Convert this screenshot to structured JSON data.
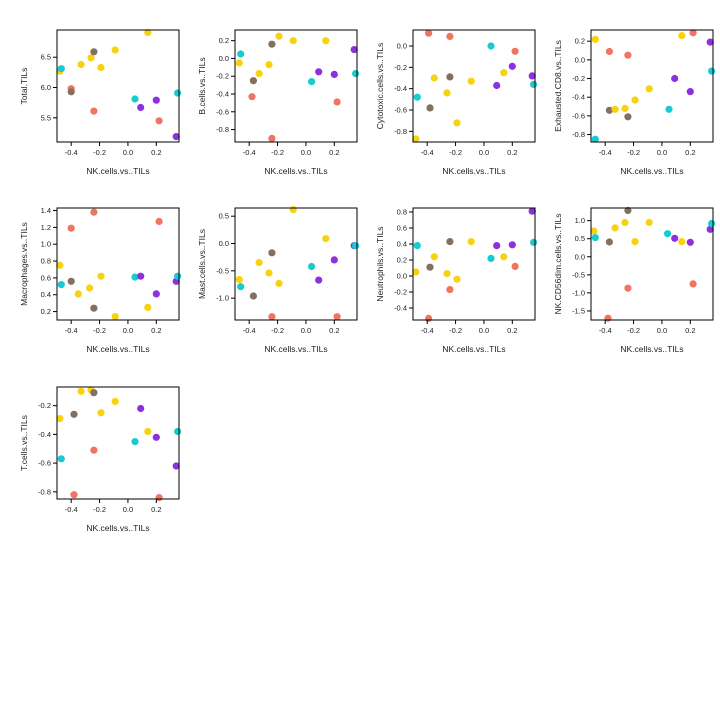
{
  "colors": {
    "yellow": "#f8d210",
    "brown": "#857060",
    "salmon": "#f07560",
    "cyan": "#18cbcf",
    "purple": "#8c30e0"
  },
  "chart_data": [
    {
      "type": "scatter",
      "xlabel": "NK.cells.vs..TILs",
      "ylabel": "Total.TILs",
      "xlim": [
        -0.5,
        0.36
      ],
      "ylim": [
        5.1,
        6.95
      ],
      "xticks": [
        -0.4,
        -0.2,
        0.0,
        0.2
      ],
      "xtick_labels": [
        "-0.4",
        "-0.2",
        "0.0",
        "0.2"
      ],
      "yticks": [
        5.5,
        6.0,
        6.5
      ],
      "ytick_labels": [
        "5.5",
        "6.0",
        "6.5"
      ],
      "points": [
        {
          "x": -0.48,
          "y": 6.27,
          "c": "yellow"
        },
        {
          "x": -0.47,
          "y": 6.31,
          "c": "cyan"
        },
        {
          "x": -0.4,
          "y": 5.98,
          "c": "salmon"
        },
        {
          "x": -0.4,
          "y": 5.93,
          "c": "brown"
        },
        {
          "x": -0.33,
          "y": 6.38,
          "c": "yellow"
        },
        {
          "x": -0.26,
          "y": 6.49,
          "c": "yellow"
        },
        {
          "x": -0.24,
          "y": 6.59,
          "c": "brown"
        },
        {
          "x": -0.24,
          "y": 5.61,
          "c": "salmon"
        },
        {
          "x": -0.19,
          "y": 6.33,
          "c": "yellow"
        },
        {
          "x": -0.09,
          "y": 6.62,
          "c": "yellow"
        },
        {
          "x": 0.05,
          "y": 5.81,
          "c": "cyan"
        },
        {
          "x": 0.09,
          "y": 5.67,
          "c": "purple"
        },
        {
          "x": 0.14,
          "y": 6.91,
          "c": "yellow"
        },
        {
          "x": 0.2,
          "y": 5.79,
          "c": "purple"
        },
        {
          "x": 0.22,
          "y": 5.45,
          "c": "salmon"
        },
        {
          "x": 0.34,
          "y": 5.19,
          "c": "purple"
        },
        {
          "x": 0.35,
          "y": 5.91,
          "c": "cyan"
        }
      ]
    },
    {
      "type": "scatter",
      "xlabel": "NK.cells.vs..TILs",
      "ylabel": "B.cells.vs..TILs",
      "xlim": [
        -0.5,
        0.36
      ],
      "ylim": [
        -0.94,
        0.32
      ],
      "xticks": [
        -0.4,
        -0.2,
        0.0,
        0.2
      ],
      "xtick_labels": [
        "-0.4",
        "-0.2",
        "0.0",
        "0.2"
      ],
      "yticks": [
        -0.8,
        -0.6,
        -0.4,
        -0.2,
        0.0,
        0.2
      ],
      "ytick_labels": [
        "-0.8",
        "-0.6",
        "-0.4",
        "-0.2",
        "0.0",
        "0.2"
      ],
      "points": [
        {
          "x": -0.47,
          "y": -0.05,
          "c": "yellow"
        },
        {
          "x": -0.46,
          "y": 0.05,
          "c": "cyan"
        },
        {
          "x": -0.38,
          "y": -0.43,
          "c": "salmon"
        },
        {
          "x": -0.37,
          "y": -0.25,
          "c": "brown"
        },
        {
          "x": -0.33,
          "y": -0.17,
          "c": "yellow"
        },
        {
          "x": -0.26,
          "y": -0.07,
          "c": "yellow"
        },
        {
          "x": -0.24,
          "y": 0.16,
          "c": "brown"
        },
        {
          "x": -0.24,
          "y": -0.9,
          "c": "salmon"
        },
        {
          "x": -0.19,
          "y": 0.25,
          "c": "yellow"
        },
        {
          "x": -0.09,
          "y": 0.2,
          "c": "yellow"
        },
        {
          "x": 0.04,
          "y": -0.26,
          "c": "cyan"
        },
        {
          "x": 0.09,
          "y": -0.15,
          "c": "purple"
        },
        {
          "x": 0.14,
          "y": 0.2,
          "c": "yellow"
        },
        {
          "x": 0.2,
          "y": -0.18,
          "c": "purple"
        },
        {
          "x": 0.22,
          "y": -0.49,
          "c": "salmon"
        },
        {
          "x": 0.34,
          "y": 0.1,
          "c": "purple"
        },
        {
          "x": 0.35,
          "y": -0.17,
          "c": "cyan"
        }
      ]
    },
    {
      "type": "scatter",
      "xlabel": "NK.cells.vs..TILs",
      "ylabel": "Cytotoxic.cells.vs..TILs",
      "xlim": [
        -0.5,
        0.36
      ],
      "ylim": [
        -0.9,
        0.15
      ],
      "xticks": [
        -0.4,
        -0.2,
        0.0,
        0.2
      ],
      "xtick_labels": [
        "-0.4",
        "-0.2",
        "0.0",
        "0.2"
      ],
      "yticks": [
        -0.8,
        -0.6,
        -0.4,
        -0.2,
        0.0
      ],
      "ytick_labels": [
        "-0.8",
        "-0.6",
        "-0.4",
        "-0.2",
        "0.0"
      ],
      "points": [
        {
          "x": -0.48,
          "y": -0.87,
          "c": "yellow"
        },
        {
          "x": -0.47,
          "y": -0.48,
          "c": "cyan"
        },
        {
          "x": -0.39,
          "y": 0.12,
          "c": "salmon"
        },
        {
          "x": -0.38,
          "y": -0.58,
          "c": "brown"
        },
        {
          "x": -0.35,
          "y": -0.3,
          "c": "yellow"
        },
        {
          "x": -0.26,
          "y": -0.44,
          "c": "yellow"
        },
        {
          "x": -0.24,
          "y": -0.29,
          "c": "brown"
        },
        {
          "x": -0.24,
          "y": 0.09,
          "c": "salmon"
        },
        {
          "x": -0.19,
          "y": -0.72,
          "c": "yellow"
        },
        {
          "x": -0.09,
          "y": -0.33,
          "c": "yellow"
        },
        {
          "x": 0.05,
          "y": 0.0,
          "c": "cyan"
        },
        {
          "x": 0.09,
          "y": -0.37,
          "c": "purple"
        },
        {
          "x": 0.14,
          "y": -0.25,
          "c": "yellow"
        },
        {
          "x": 0.2,
          "y": -0.19,
          "c": "purple"
        },
        {
          "x": 0.22,
          "y": -0.05,
          "c": "salmon"
        },
        {
          "x": 0.34,
          "y": -0.28,
          "c": "purple"
        },
        {
          "x": 0.35,
          "y": -0.36,
          "c": "cyan"
        }
      ]
    },
    {
      "type": "scatter",
      "xlabel": "NK.cells.vs..TILs",
      "ylabel": "Exhausted.CD8.vs..TILs",
      "xlim": [
        -0.5,
        0.36
      ],
      "ylim": [
        -0.88,
        0.32
      ],
      "xticks": [
        -0.4,
        -0.2,
        0.0,
        0.2
      ],
      "xtick_labels": [
        "-0.4",
        "-0.2",
        "0.0",
        "0.2"
      ],
      "yticks": [
        -0.8,
        -0.6,
        -0.4,
        -0.2,
        0.0,
        0.2
      ],
      "ytick_labels": [
        "-0.8",
        "-0.6",
        "-0.4",
        "-0.2",
        "0.0",
        "0.2"
      ],
      "points": [
        {
          "x": -0.47,
          "y": 0.22,
          "c": "yellow"
        },
        {
          "x": -0.47,
          "y": -0.85,
          "c": "cyan"
        },
        {
          "x": -0.37,
          "y": 0.09,
          "c": "salmon"
        },
        {
          "x": -0.37,
          "y": -0.54,
          "c": "brown"
        },
        {
          "x": -0.33,
          "y": -0.53,
          "c": "yellow"
        },
        {
          "x": -0.26,
          "y": -0.52,
          "c": "yellow"
        },
        {
          "x": -0.24,
          "y": 0.05,
          "c": "salmon"
        },
        {
          "x": -0.24,
          "y": -0.61,
          "c": "brown"
        },
        {
          "x": -0.19,
          "y": -0.43,
          "c": "yellow"
        },
        {
          "x": -0.09,
          "y": -0.31,
          "c": "yellow"
        },
        {
          "x": 0.05,
          "y": -0.53,
          "c": "cyan"
        },
        {
          "x": 0.09,
          "y": -0.2,
          "c": "purple"
        },
        {
          "x": 0.14,
          "y": 0.26,
          "c": "yellow"
        },
        {
          "x": 0.2,
          "y": -0.34,
          "c": "purple"
        },
        {
          "x": 0.22,
          "y": 0.29,
          "c": "salmon"
        },
        {
          "x": 0.34,
          "y": 0.19,
          "c": "purple"
        },
        {
          "x": 0.35,
          "y": -0.12,
          "c": "cyan"
        }
      ]
    },
    {
      "type": "scatter",
      "xlabel": "NK.cells.vs..TILs",
      "ylabel": "Macrophages.vs..TILs",
      "xlim": [
        -0.5,
        0.36
      ],
      "ylim": [
        0.1,
        1.43
      ],
      "xticks": [
        -0.4,
        -0.2,
        0.0,
        0.2
      ],
      "xtick_labels": [
        "-0.4",
        "-0.2",
        "0.0",
        "0.2"
      ],
      "yticks": [
        0.2,
        0.4,
        0.6,
        0.8,
        1.0,
        1.2,
        1.4
      ],
      "ytick_labels": [
        "0.2",
        "0.4",
        "0.6",
        "0.8",
        "1.0",
        "1.2",
        "1.4"
      ],
      "points": [
        {
          "x": -0.48,
          "y": 0.75,
          "c": "yellow"
        },
        {
          "x": -0.47,
          "y": 0.52,
          "c": "cyan"
        },
        {
          "x": -0.4,
          "y": 1.19,
          "c": "salmon"
        },
        {
          "x": -0.4,
          "y": 0.56,
          "c": "brown"
        },
        {
          "x": -0.35,
          "y": 0.41,
          "c": "yellow"
        },
        {
          "x": -0.27,
          "y": 0.48,
          "c": "yellow"
        },
        {
          "x": -0.24,
          "y": 1.38,
          "c": "salmon"
        },
        {
          "x": -0.24,
          "y": 0.24,
          "c": "brown"
        },
        {
          "x": -0.19,
          "y": 0.62,
          "c": "yellow"
        },
        {
          "x": -0.09,
          "y": 0.14,
          "c": "yellow"
        },
        {
          "x": 0.05,
          "y": 0.61,
          "c": "cyan"
        },
        {
          "x": 0.09,
          "y": 0.62,
          "c": "purple"
        },
        {
          "x": 0.14,
          "y": 0.25,
          "c": "yellow"
        },
        {
          "x": 0.2,
          "y": 0.41,
          "c": "purple"
        },
        {
          "x": 0.22,
          "y": 1.27,
          "c": "salmon"
        },
        {
          "x": 0.34,
          "y": 0.56,
          "c": "purple"
        },
        {
          "x": 0.35,
          "y": 0.62,
          "c": "cyan"
        }
      ]
    },
    {
      "type": "scatter",
      "xlabel": "NK.cells.vs..TILs",
      "ylabel": "Mast.cells.vs..TILs",
      "xlim": [
        -0.5,
        0.36
      ],
      "ylim": [
        -1.4,
        0.65
      ],
      "xticks": [
        -0.4,
        -0.2,
        0.0,
        0.2
      ],
      "xtick_labels": [
        "-0.4",
        "-0.2",
        "0.0",
        "0.2"
      ],
      "yticks": [
        -1.0,
        -0.5,
        0.0,
        0.5
      ],
      "ytick_labels": [
        "-1.0",
        "-0.5",
        "0.0",
        "0.5"
      ],
      "points": [
        {
          "x": -0.47,
          "y": -0.66,
          "c": "yellow"
        },
        {
          "x": -0.46,
          "y": -0.79,
          "c": "cyan"
        },
        {
          "x": -0.37,
          "y": -0.96,
          "c": "brown"
        },
        {
          "x": -0.33,
          "y": -0.35,
          "c": "yellow"
        },
        {
          "x": -0.26,
          "y": -0.54,
          "c": "yellow"
        },
        {
          "x": -0.24,
          "y": -0.17,
          "c": "brown"
        },
        {
          "x": -0.24,
          "y": -1.34,
          "c": "salmon"
        },
        {
          "x": -0.19,
          "y": -0.73,
          "c": "yellow"
        },
        {
          "x": -0.09,
          "y": 0.62,
          "c": "yellow"
        },
        {
          "x": 0.04,
          "y": -0.42,
          "c": "cyan"
        },
        {
          "x": 0.09,
          "y": -0.67,
          "c": "purple"
        },
        {
          "x": 0.14,
          "y": 0.09,
          "c": "yellow"
        },
        {
          "x": 0.2,
          "y": -0.3,
          "c": "purple"
        },
        {
          "x": 0.22,
          "y": -1.34,
          "c": "salmon"
        },
        {
          "x": 0.34,
          "y": -0.04,
          "c": "purple"
        },
        {
          "x": 0.35,
          "y": -0.04,
          "c": "cyan"
        }
      ]
    },
    {
      "type": "scatter",
      "xlabel": "NK.cells.vs..TILs",
      "ylabel": "Neutrophils.vs..TILs",
      "xlim": [
        -0.5,
        0.36
      ],
      "ylim": [
        -0.55,
        0.85
      ],
      "xticks": [
        -0.4,
        -0.2,
        0.0,
        0.2
      ],
      "xtick_labels": [
        "-0.4",
        "-0.2",
        "0.0",
        "0.2"
      ],
      "yticks": [
        -0.4,
        -0.2,
        0.0,
        0.2,
        0.4,
        0.6,
        0.8
      ],
      "ytick_labels": [
        "-0.4",
        "-0.2",
        "0.0",
        "0.2",
        "0.4",
        "0.6",
        "0.8"
      ],
      "points": [
        {
          "x": -0.48,
          "y": 0.05,
          "c": "yellow"
        },
        {
          "x": -0.47,
          "y": 0.38,
          "c": "cyan"
        },
        {
          "x": -0.39,
          "y": -0.53,
          "c": "salmon"
        },
        {
          "x": -0.38,
          "y": 0.11,
          "c": "brown"
        },
        {
          "x": -0.35,
          "y": 0.24,
          "c": "yellow"
        },
        {
          "x": -0.26,
          "y": 0.03,
          "c": "yellow"
        },
        {
          "x": -0.24,
          "y": 0.43,
          "c": "brown"
        },
        {
          "x": -0.24,
          "y": -0.17,
          "c": "salmon"
        },
        {
          "x": -0.19,
          "y": -0.04,
          "c": "yellow"
        },
        {
          "x": -0.09,
          "y": 0.43,
          "c": "yellow"
        },
        {
          "x": 0.05,
          "y": 0.22,
          "c": "cyan"
        },
        {
          "x": 0.09,
          "y": 0.38,
          "c": "purple"
        },
        {
          "x": 0.14,
          "y": 0.24,
          "c": "yellow"
        },
        {
          "x": 0.2,
          "y": 0.39,
          "c": "purple"
        },
        {
          "x": 0.22,
          "y": 0.12,
          "c": "salmon"
        },
        {
          "x": 0.34,
          "y": 0.81,
          "c": "purple"
        },
        {
          "x": 0.35,
          "y": 0.42,
          "c": "cyan"
        }
      ]
    },
    {
      "type": "scatter",
      "xlabel": "NK.cells.vs..TILs",
      "ylabel": "NK.CD56dim.cells.vs..TILs",
      "xlim": [
        -0.5,
        0.36
      ],
      "ylim": [
        -1.75,
        1.35
      ],
      "xticks": [
        -0.4,
        -0.2,
        0.0,
        0.2
      ],
      "xtick_labels": [
        "-0.4",
        "-0.2",
        "0.0",
        "0.2"
      ],
      "yticks": [
        -1.5,
        -1.0,
        -0.5,
        0.0,
        0.5,
        1.0
      ],
      "ytick_labels": [
        "-1.5",
        "-1.0",
        "-0.5",
        "0.0",
        "0.5",
        "1.0"
      ],
      "points": [
        {
          "x": -0.48,
          "y": 0.71,
          "c": "yellow"
        },
        {
          "x": -0.47,
          "y": 0.53,
          "c": "cyan"
        },
        {
          "x": -0.38,
          "y": -1.7,
          "c": "salmon"
        },
        {
          "x": -0.37,
          "y": 0.41,
          "c": "brown"
        },
        {
          "x": -0.33,
          "y": 0.8,
          "c": "yellow"
        },
        {
          "x": -0.26,
          "y": 0.95,
          "c": "yellow"
        },
        {
          "x": -0.24,
          "y": 1.28,
          "c": "brown"
        },
        {
          "x": -0.24,
          "y": -0.87,
          "c": "salmon"
        },
        {
          "x": -0.19,
          "y": 0.42,
          "c": "yellow"
        },
        {
          "x": -0.09,
          "y": 0.95,
          "c": "yellow"
        },
        {
          "x": 0.04,
          "y": 0.64,
          "c": "cyan"
        },
        {
          "x": 0.09,
          "y": 0.51,
          "c": "purple"
        },
        {
          "x": 0.14,
          "y": 0.42,
          "c": "yellow"
        },
        {
          "x": 0.2,
          "y": 0.4,
          "c": "purple"
        },
        {
          "x": 0.22,
          "y": -0.75,
          "c": "salmon"
        },
        {
          "x": 0.34,
          "y": 0.76,
          "c": "purple"
        },
        {
          "x": 0.35,
          "y": 0.92,
          "c": "cyan"
        }
      ]
    },
    {
      "type": "scatter",
      "xlabel": "NK.cells.vs..TILs",
      "ylabel": "T.cells.vs..TILs",
      "xlim": [
        -0.5,
        0.36
      ],
      "ylim": [
        -0.85,
        -0.07
      ],
      "xticks": [
        -0.4,
        -0.2,
        0.0,
        0.2
      ],
      "xtick_labels": [
        "-0.4",
        "-0.2",
        "0.0",
        "0.2"
      ],
      "yticks": [
        -0.8,
        -0.6,
        -0.4,
        -0.2
      ],
      "ytick_labels": [
        "-0.8",
        "-0.6",
        "-0.4",
        "-0.2"
      ],
      "points": [
        {
          "x": -0.48,
          "y": -0.29,
          "c": "yellow"
        },
        {
          "x": -0.47,
          "y": -0.57,
          "c": "cyan"
        },
        {
          "x": -0.38,
          "y": -0.82,
          "c": "salmon"
        },
        {
          "x": -0.38,
          "y": -0.26,
          "c": "brown"
        },
        {
          "x": -0.33,
          "y": -0.1,
          "c": "yellow"
        },
        {
          "x": -0.26,
          "y": -0.09,
          "c": "yellow"
        },
        {
          "x": -0.24,
          "y": -0.11,
          "c": "brown"
        },
        {
          "x": -0.24,
          "y": -0.51,
          "c": "salmon"
        },
        {
          "x": -0.19,
          "y": -0.25,
          "c": "yellow"
        },
        {
          "x": -0.09,
          "y": -0.17,
          "c": "yellow"
        },
        {
          "x": 0.05,
          "y": -0.45,
          "c": "cyan"
        },
        {
          "x": 0.09,
          "y": -0.22,
          "c": "purple"
        },
        {
          "x": 0.14,
          "y": -0.38,
          "c": "yellow"
        },
        {
          "x": 0.2,
          "y": -0.42,
          "c": "purple"
        },
        {
          "x": 0.22,
          "y": -0.84,
          "c": "salmon"
        },
        {
          "x": 0.34,
          "y": -0.62,
          "c": "purple"
        },
        {
          "x": 0.35,
          "y": -0.38,
          "c": "cyan"
        }
      ]
    }
  ]
}
